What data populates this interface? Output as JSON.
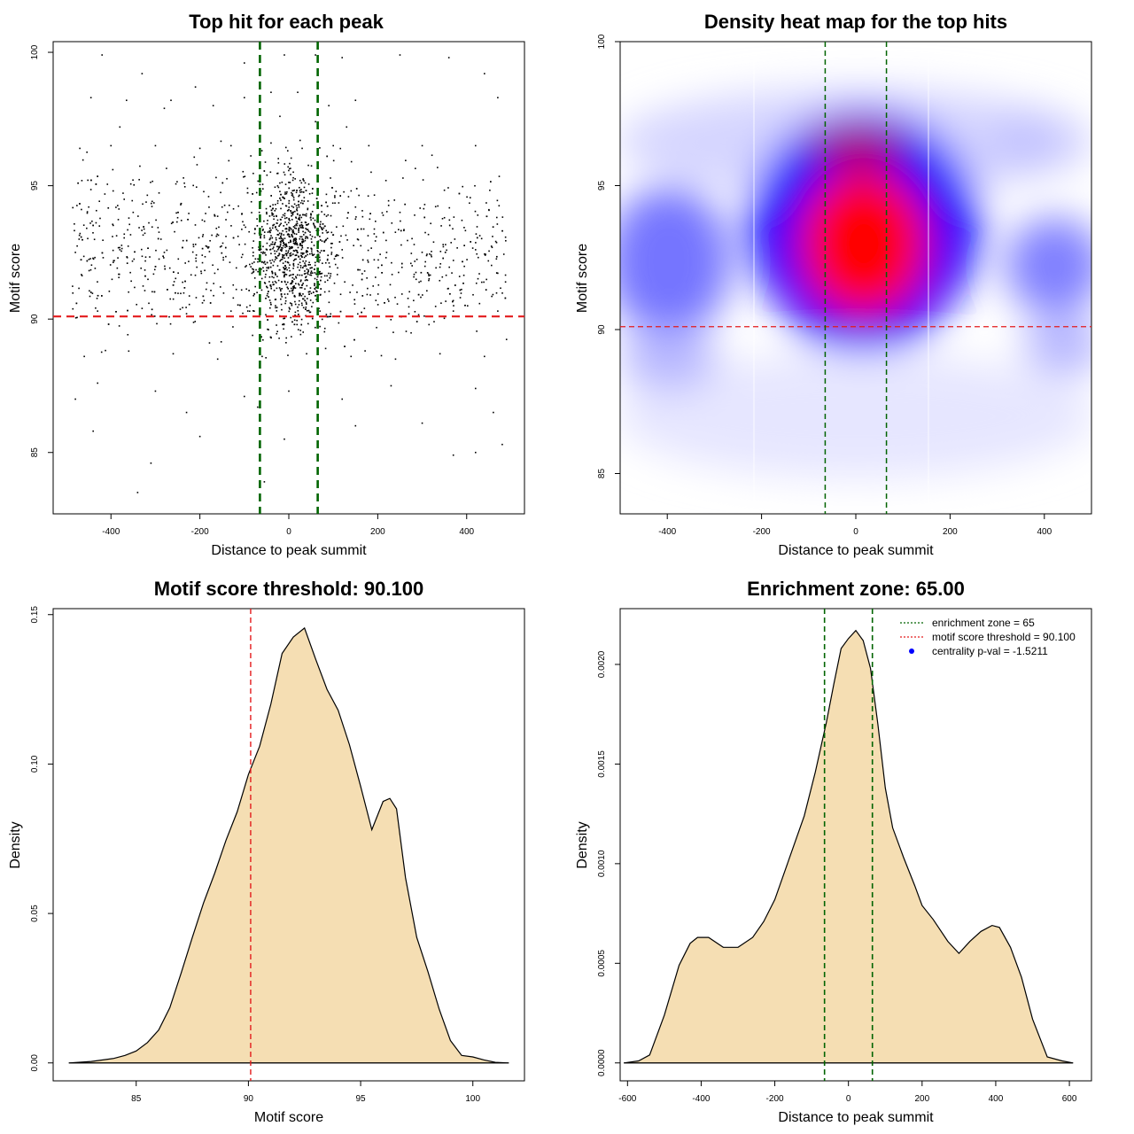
{
  "chart_data": [
    {
      "type": "scatter",
      "title": "Top hit for each peak",
      "xlabel": "Distance to peak summit",
      "ylabel": "Motif score",
      "xlim": [
        -530,
        530
      ],
      "ylim": [
        82.7,
        100.4
      ],
      "x_ticks": [
        -400,
        -200,
        0,
        200,
        400
      ],
      "x_tick_labels": [
        "-400",
        "-200",
        "0",
        "200",
        "400"
      ],
      "y_ticks": [
        85,
        90,
        95,
        100
      ],
      "y_tick_labels": [
        "85",
        "90",
        "95",
        "100"
      ],
      "threshold_y": 90.1,
      "zone_x": [
        -65,
        65
      ],
      "point_color": "#000000",
      "threshold_color": "#e31a1c",
      "zone_color": "#006400",
      "n_points_approx": 2000,
      "points": [
        [
          -420,
          99.9
        ],
        [
          -330,
          99.2
        ],
        [
          -210,
          98.7
        ],
        [
          -100,
          99.6
        ],
        [
          -10,
          99.9
        ],
        [
          60,
          99.9
        ],
        [
          120,
          99.8
        ],
        [
          250,
          99.9
        ],
        [
          360,
          99.8
        ],
        [
          440,
          99.2
        ],
        [
          -445,
          98.3
        ],
        [
          -365,
          98.2
        ],
        [
          -265,
          98.2
        ],
        [
          -170,
          98.0
        ],
        [
          -100,
          98.3
        ],
        [
          -40,
          98.5
        ],
        [
          20,
          98.5
        ],
        [
          90,
          98.0
        ],
        [
          150,
          98.2
        ],
        [
          -280,
          97.9
        ],
        [
          470,
          98.3
        ],
        [
          -380,
          97.2
        ],
        [
          -20,
          97.6
        ],
        [
          60,
          97.4
        ],
        [
          130,
          97.2
        ],
        [
          -470,
          96.4
        ],
        [
          -400,
          96.5
        ],
        [
          -300,
          96.5
        ],
        [
          -200,
          96.4
        ],
        [
          -130,
          96.5
        ],
        [
          -40,
          96.6
        ],
        [
          30,
          96.4
        ],
        [
          100,
          96.5
        ],
        [
          180,
          96.5
        ],
        [
          300,
          96.5
        ],
        [
          420,
          96.5
        ],
        [
          -450,
          94.2
        ],
        [
          -350,
          94.0
        ],
        [
          -250,
          93.8
        ],
        [
          -150,
          94.2
        ],
        [
          -50,
          94.0
        ],
        [
          0,
          94.1
        ],
        [
          50,
          93.9
        ],
        [
          150,
          94.2
        ],
        [
          250,
          94.0
        ],
        [
          350,
          93.8
        ],
        [
          450,
          94.1
        ],
        [
          -480,
          92.5
        ],
        [
          -380,
          92.6
        ],
        [
          -280,
          92.5
        ],
        [
          -180,
          92.7
        ],
        [
          -80,
          92.5
        ],
        [
          20,
          92.5
        ],
        [
          120,
          92.6
        ],
        [
          220,
          92.5
        ],
        [
          320,
          92.4
        ],
        [
          420,
          92.6
        ],
        [
          -430,
          90.3
        ],
        [
          -330,
          90.4
        ],
        [
          -230,
          90.2
        ],
        [
          -130,
          90.3
        ],
        [
          -30,
          90.5
        ],
        [
          70,
          90.3
        ],
        [
          170,
          90.4
        ],
        [
          270,
          90.2
        ],
        [
          370,
          90.3
        ],
        [
          470,
          90.3
        ],
        [
          -460,
          88.6
        ],
        [
          -360,
          88.8
        ],
        [
          -260,
          88.7
        ],
        [
          -160,
          88.5
        ],
        [
          -60,
          88.6
        ],
        [
          40,
          88.7
        ],
        [
          140,
          88.6
        ],
        [
          240,
          88.5
        ],
        [
          340,
          88.7
        ],
        [
          440,
          88.6
        ],
        [
          -430,
          87.6
        ],
        [
          -300,
          87.3
        ],
        [
          -100,
          87.1
        ],
        [
          0,
          87.3
        ],
        [
          120,
          87.0
        ],
        [
          230,
          87.5
        ],
        [
          420,
          87.4
        ],
        [
          -480,
          87.0
        ],
        [
          -230,
          86.5
        ],
        [
          -70,
          86.7
        ],
        [
          150,
          86.0
        ],
        [
          300,
          86.1
        ],
        [
          460,
          86.5
        ],
        [
          -440,
          85.8
        ],
        [
          -200,
          85.6
        ],
        [
          -10,
          85.5
        ],
        [
          370,
          84.9
        ],
        [
          420,
          85.0
        ],
        [
          480,
          85.3
        ],
        [
          -310,
          84.6
        ],
        [
          -340,
          83.5
        ],
        [
          -55,
          83.9
        ]
      ]
    },
    {
      "type": "heatmap",
      "title": "Density heat map for the top hits",
      "xlabel": "Distance to peak summit",
      "ylabel": "Motif score",
      "xlim": [
        -500,
        500
      ],
      "ylim": [
        83.6,
        100
      ],
      "x_ticks": [
        -400,
        -200,
        0,
        200,
        400
      ],
      "x_tick_labels": [
        "-400",
        "-200",
        "0",
        "200",
        "400"
      ],
      "y_ticks": [
        85,
        90,
        95,
        100
      ],
      "y_tick_labels": [
        "85",
        "90",
        "95",
        "100"
      ],
      "threshold_y": 90.1,
      "zone_x": [
        -65,
        65
      ],
      "colors": [
        "#ffffff",
        "#0000ff",
        "#ff0000"
      ],
      "density_peak": {
        "x": 15,
        "y": 93.0
      }
    },
    {
      "type": "area",
      "title": "Motif score threshold: 90.100",
      "xlabel": "Motif score",
      "ylabel": "Density",
      "xlim": [
        81.3,
        102.3
      ],
      "ylim": [
        -0.006,
        0.152
      ],
      "x_ticks": [
        85,
        90,
        95,
        100
      ],
      "x_tick_labels": [
        "85",
        "90",
        "95",
        "100"
      ],
      "y_ticks": [
        0,
        0.05,
        0.1,
        0.15
      ],
      "y_tick_labels": [
        "0.00",
        "0.05",
        "0.10",
        "0.15"
      ],
      "threshold_x": 90.1,
      "fill_color": "#f5deb3",
      "x": [
        82,
        83,
        84,
        84.5,
        85,
        85.5,
        86,
        86.5,
        87,
        87.5,
        88,
        88.5,
        89,
        89.5,
        90,
        90.5,
        91,
        91.5,
        92,
        92.5,
        93,
        93.5,
        94,
        94.5,
        95,
        95.5,
        96,
        96.3,
        96.6,
        97,
        97.5,
        98,
        98.5,
        99,
        99.5,
        100,
        100.5,
        101,
        101.6
      ],
      "y": [
        0.0,
        0.0005,
        0.0015,
        0.0025,
        0.004,
        0.0068,
        0.011,
        0.0185,
        0.03,
        0.042,
        0.0535,
        0.0635,
        0.0745,
        0.084,
        0.0965,
        0.106,
        0.12,
        0.137,
        0.1425,
        0.1455,
        0.135,
        0.125,
        0.118,
        0.1065,
        0.0925,
        0.078,
        0.0875,
        0.0885,
        0.085,
        0.062,
        0.042,
        0.0305,
        0.018,
        0.0075,
        0.0025,
        0.002,
        0.001,
        0.0002,
        0.0
      ]
    },
    {
      "type": "area",
      "title": "Enrichment zone: 65.00",
      "xlabel": "Distance to peak summit",
      "ylabel": "Density",
      "xlim": [
        -620,
        660
      ],
      "ylim": [
        -9e-05,
        0.00228
      ],
      "x_ticks": [
        -600,
        -400,
        -200,
        0,
        200,
        400,
        600
      ],
      "x_tick_labels": [
        "-600",
        "-400",
        "-200",
        "0",
        "200",
        "400",
        "600"
      ],
      "y_ticks": [
        0,
        0.0005,
        0.001,
        0.0015,
        0.002
      ],
      "y_tick_labels": [
        "0.0000",
        "0.0005",
        "0.0010",
        "0.0015",
        "0.0020"
      ],
      "zone_x": [
        -65,
        65
      ],
      "fill_color": "#f5deb3",
      "legend": [
        {
          "label": "enrichment zone = 65",
          "color": "#006400",
          "style": "dotted-line"
        },
        {
          "label": "motif score threshold = 90.100",
          "color": "#e31a1c",
          "style": "dotted-line"
        },
        {
          "label": "centrality p-val = -1.5211",
          "color": "#0000ff",
          "style": "point"
        }
      ],
      "legend_position": "top-right",
      "x": [
        -610,
        -570,
        -540,
        -500,
        -460,
        -430,
        -410,
        -380,
        -340,
        -300,
        -260,
        -230,
        -200,
        -160,
        -120,
        -90,
        -60,
        -40,
        -20,
        0,
        20,
        40,
        60,
        80,
        100,
        120,
        150,
        180,
        200,
        230,
        270,
        300,
        330,
        360,
        390,
        410,
        440,
        470,
        500,
        540,
        580,
        610
      ],
      "y": [
        0.0,
        1e-05,
        4e-05,
        0.00024,
        0.00049,
        0.0006,
        0.00063,
        0.00063,
        0.00058,
        0.00058,
        0.00063,
        0.00071,
        0.00082,
        0.00103,
        0.00124,
        0.00146,
        0.00171,
        0.0019,
        0.00208,
        0.00213,
        0.00217,
        0.00212,
        0.00198,
        0.0017,
        0.00138,
        0.00118,
        0.00103,
        0.00089,
        0.00079,
        0.00072,
        0.00061,
        0.00055,
        0.00061,
        0.00066,
        0.00069,
        0.00068,
        0.00058,
        0.00043,
        0.00022,
        3e-05,
        1e-05,
        0.0
      ]
    }
  ]
}
